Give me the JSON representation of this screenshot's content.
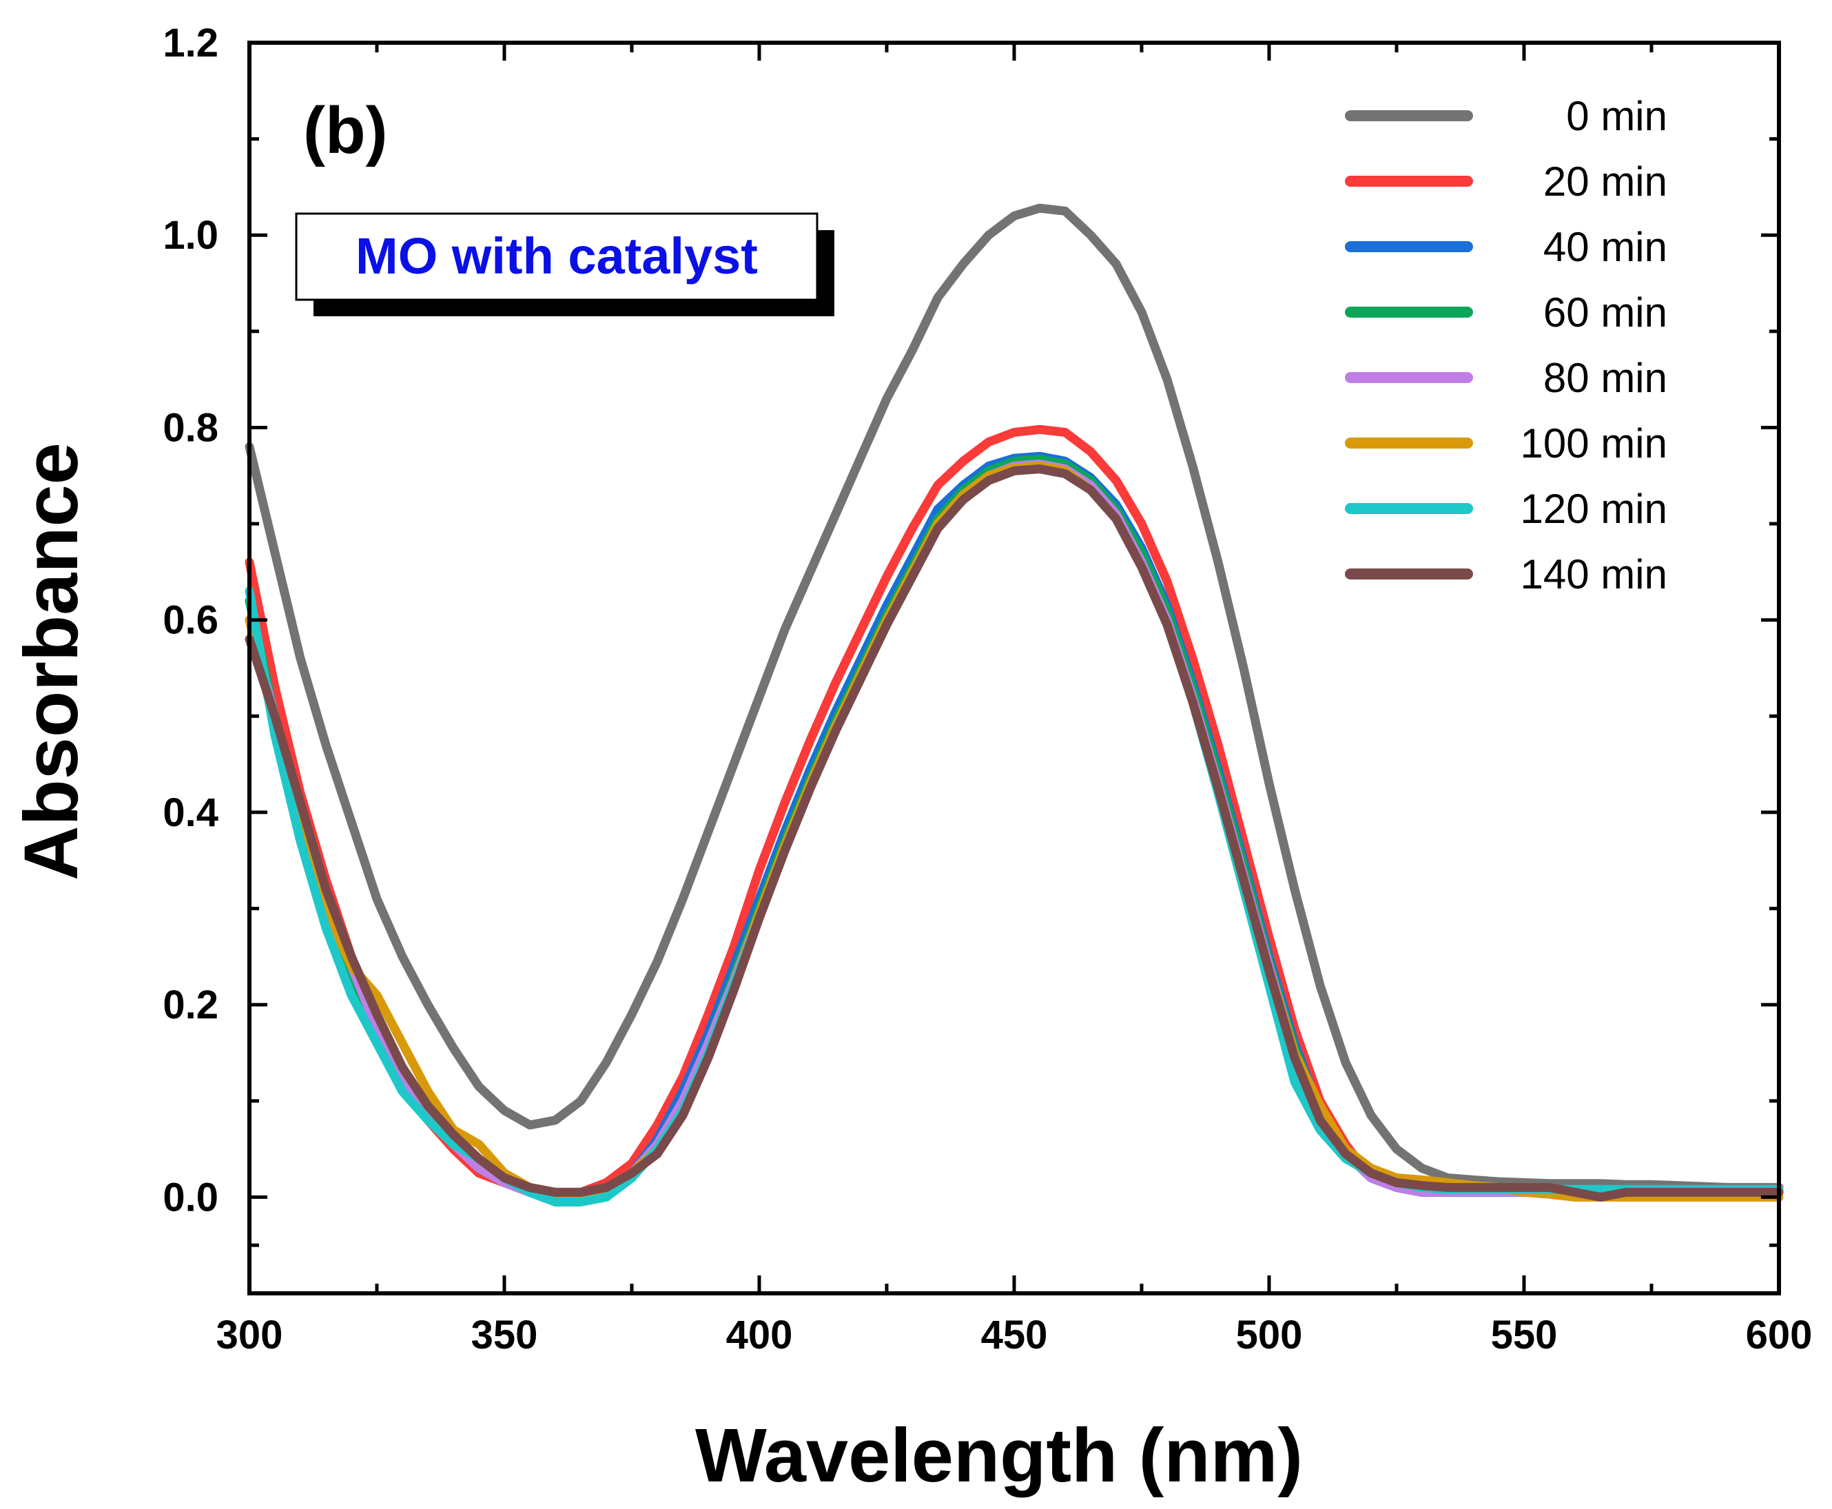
{
  "chart_data": {
    "type": "line",
    "panel_label": "(b)",
    "annotation": "MO with catalyst",
    "annotation_color": "#0a10e6",
    "xlabel": "Wavelength  (nm)",
    "ylabel": "Absorbance",
    "xlim": [
      300,
      600
    ],
    "ylim": [
      -0.1,
      1.2
    ],
    "xticks": [
      300,
      350,
      400,
      450,
      500,
      550,
      600
    ],
    "yticks": [
      0.0,
      0.2,
      0.4,
      0.6,
      0.8,
      1.0,
      1.2
    ],
    "ytick_labels": [
      "0.0",
      "0.2",
      "0.4",
      "0.6",
      "0.8",
      "1.0",
      "1.2"
    ],
    "legend_position": "top-right",
    "x": [
      300,
      305,
      310,
      315,
      320,
      325,
      330,
      335,
      340,
      345,
      350,
      355,
      360,
      365,
      370,
      375,
      380,
      385,
      390,
      395,
      400,
      405,
      410,
      415,
      420,
      425,
      430,
      435,
      440,
      445,
      450,
      455,
      460,
      465,
      470,
      475,
      480,
      485,
      490,
      495,
      500,
      505,
      510,
      515,
      520,
      525,
      530,
      535,
      540,
      545,
      550,
      555,
      560,
      565,
      570,
      575,
      580,
      585,
      590,
      595,
      600
    ],
    "series": [
      {
        "name": "0 min",
        "color": "#737373",
        "values": [
          0.78,
          0.67,
          0.56,
          0.47,
          0.39,
          0.31,
          0.25,
          0.2,
          0.155,
          0.115,
          0.09,
          0.075,
          0.08,
          0.1,
          0.14,
          0.19,
          0.245,
          0.31,
          0.38,
          0.45,
          0.52,
          0.59,
          0.65,
          0.71,
          0.77,
          0.83,
          0.88,
          0.935,
          0.97,
          1.0,
          1.02,
          1.028,
          1.025,
          1.0,
          0.97,
          0.92,
          0.85,
          0.76,
          0.66,
          0.55,
          0.43,
          0.32,
          0.22,
          0.14,
          0.085,
          0.05,
          0.03,
          0.02,
          0.018,
          0.016,
          0.015,
          0.014,
          0.014,
          0.014,
          0.013,
          0.013,
          0.012,
          0.011,
          0.01,
          0.01,
          0.01
        ]
      },
      {
        "name": "20 min",
        "color": "#fb3a3a",
        "values": [
          0.66,
          0.53,
          0.42,
          0.33,
          0.25,
          0.18,
          0.12,
          0.08,
          0.05,
          0.025,
          0.015,
          0.01,
          0.005,
          0.005,
          0.015,
          0.035,
          0.075,
          0.125,
          0.19,
          0.26,
          0.34,
          0.41,
          0.475,
          0.535,
          0.59,
          0.645,
          0.695,
          0.74,
          0.765,
          0.785,
          0.795,
          0.798,
          0.795,
          0.775,
          0.745,
          0.7,
          0.64,
          0.56,
          0.47,
          0.37,
          0.27,
          0.175,
          0.1,
          0.055,
          0.02,
          0.01,
          0.005,
          0.005,
          0.005,
          0.005,
          0.005,
          0.005,
          0.005,
          0.005,
          0.005,
          0.005,
          0.005,
          0.005,
          0.005,
          0.005,
          0.005
        ]
      },
      {
        "name": "40 min",
        "color": "#1a6fd9",
        "values": [
          0.6,
          0.5,
          0.4,
          0.31,
          0.24,
          0.18,
          0.13,
          0.09,
          0.06,
          0.035,
          0.015,
          0.005,
          0.0,
          0.0,
          0.01,
          0.025,
          0.06,
          0.11,
          0.17,
          0.24,
          0.31,
          0.38,
          0.445,
          0.505,
          0.56,
          0.615,
          0.665,
          0.715,
          0.74,
          0.76,
          0.768,
          0.77,
          0.765,
          0.748,
          0.72,
          0.675,
          0.615,
          0.535,
          0.445,
          0.35,
          0.25,
          0.16,
          0.09,
          0.045,
          0.02,
          0.01,
          0.005,
          0.005,
          0.005,
          0.005,
          0.005,
          0.005,
          0.005,
          0.005,
          0.005,
          0.005,
          0.005,
          0.005,
          0.005,
          0.005,
          0.005
        ]
      },
      {
        "name": "60 min",
        "color": "#0ca65a",
        "values": [
          0.62,
          0.5,
          0.39,
          0.3,
          0.23,
          0.17,
          0.12,
          0.085,
          0.055,
          0.03,
          0.015,
          0.005,
          -0.005,
          -0.005,
          0.005,
          0.02,
          0.055,
          0.1,
          0.16,
          0.23,
          0.3,
          0.37,
          0.435,
          0.495,
          0.55,
          0.605,
          0.655,
          0.705,
          0.735,
          0.755,
          0.765,
          0.767,
          0.762,
          0.745,
          0.715,
          0.67,
          0.61,
          0.53,
          0.44,
          0.345,
          0.245,
          0.155,
          0.088,
          0.045,
          0.02,
          0.01,
          0.005,
          0.005,
          0.005,
          0.005,
          0.005,
          0.005,
          0.005,
          0.005,
          0.005,
          0.005,
          0.005,
          0.005,
          0.005,
          0.005,
          0.005
        ]
      },
      {
        "name": "80 min",
        "color": "#bf7fe6",
        "values": [
          0.6,
          0.5,
          0.4,
          0.31,
          0.24,
          0.175,
          0.125,
          0.085,
          0.055,
          0.03,
          0.015,
          0.005,
          0.0,
          0.0,
          0.01,
          0.025,
          0.055,
          0.1,
          0.16,
          0.225,
          0.295,
          0.365,
          0.43,
          0.49,
          0.545,
          0.6,
          0.65,
          0.7,
          0.73,
          0.75,
          0.76,
          0.762,
          0.757,
          0.74,
          0.71,
          0.66,
          0.6,
          0.52,
          0.43,
          0.335,
          0.24,
          0.15,
          0.085,
          0.045,
          0.02,
          0.01,
          0.005,
          0.005,
          0.005,
          0.005,
          0.005,
          0.005,
          0.005,
          0.005,
          0.005,
          0.005,
          0.005,
          0.005,
          0.005,
          0.005,
          0.005
        ]
      },
      {
        "name": "100 min",
        "color": "#d99a0a",
        "values": [
          0.6,
          0.49,
          0.39,
          0.3,
          0.24,
          0.21,
          0.16,
          0.11,
          0.07,
          0.055,
          0.025,
          0.01,
          0.0,
          0.0,
          0.01,
          0.025,
          0.05,
          0.09,
          0.15,
          0.22,
          0.295,
          0.365,
          0.43,
          0.49,
          0.545,
          0.6,
          0.65,
          0.7,
          0.73,
          0.75,
          0.758,
          0.76,
          0.755,
          0.735,
          0.705,
          0.655,
          0.595,
          0.515,
          0.425,
          0.33,
          0.235,
          0.15,
          0.095,
          0.05,
          0.03,
          0.02,
          0.018,
          0.015,
          0.012,
          0.01,
          0.005,
          0.003,
          0.0,
          0.0,
          0.0,
          0.0,
          0.0,
          0.0,
          0.0,
          0.0,
          0.0
        ]
      },
      {
        "name": "120 min",
        "color": "#1fc8c8",
        "values": [
          0.63,
          0.48,
          0.37,
          0.28,
          0.21,
          0.16,
          0.11,
          0.08,
          0.055,
          0.04,
          0.02,
          0.005,
          -0.005,
          -0.005,
          0.0,
          0.02,
          0.05,
          0.09,
          0.15,
          0.22,
          0.29,
          0.36,
          0.425,
          0.485,
          0.54,
          0.595,
          0.645,
          0.695,
          0.725,
          0.745,
          0.755,
          0.757,
          0.752,
          0.735,
          0.705,
          0.655,
          0.595,
          0.515,
          0.42,
          0.32,
          0.22,
          0.12,
          0.07,
          0.04,
          0.025,
          0.015,
          0.01,
          0.008,
          0.008,
          0.008,
          0.008,
          0.008,
          0.008,
          0.008,
          0.008,
          0.008,
          0.008,
          0.008,
          0.008,
          0.008,
          0.008
        ]
      },
      {
        "name": "140 min",
        "color": "#7a4a4a",
        "values": [
          0.58,
          0.5,
          0.41,
          0.32,
          0.25,
          0.19,
          0.135,
          0.095,
          0.065,
          0.04,
          0.02,
          0.01,
          0.005,
          0.005,
          0.01,
          0.025,
          0.045,
          0.085,
          0.145,
          0.215,
          0.29,
          0.36,
          0.425,
          0.485,
          0.54,
          0.595,
          0.645,
          0.695,
          0.725,
          0.745,
          0.755,
          0.757,
          0.752,
          0.735,
          0.705,
          0.655,
          0.595,
          0.515,
          0.425,
          0.33,
          0.235,
          0.145,
          0.08,
          0.045,
          0.025,
          0.015,
          0.012,
          0.01,
          0.01,
          0.01,
          0.01,
          0.01,
          0.005,
          0.0,
          0.005,
          0.005,
          0.005,
          0.005,
          0.005,
          0.005,
          0.005
        ]
      }
    ]
  }
}
